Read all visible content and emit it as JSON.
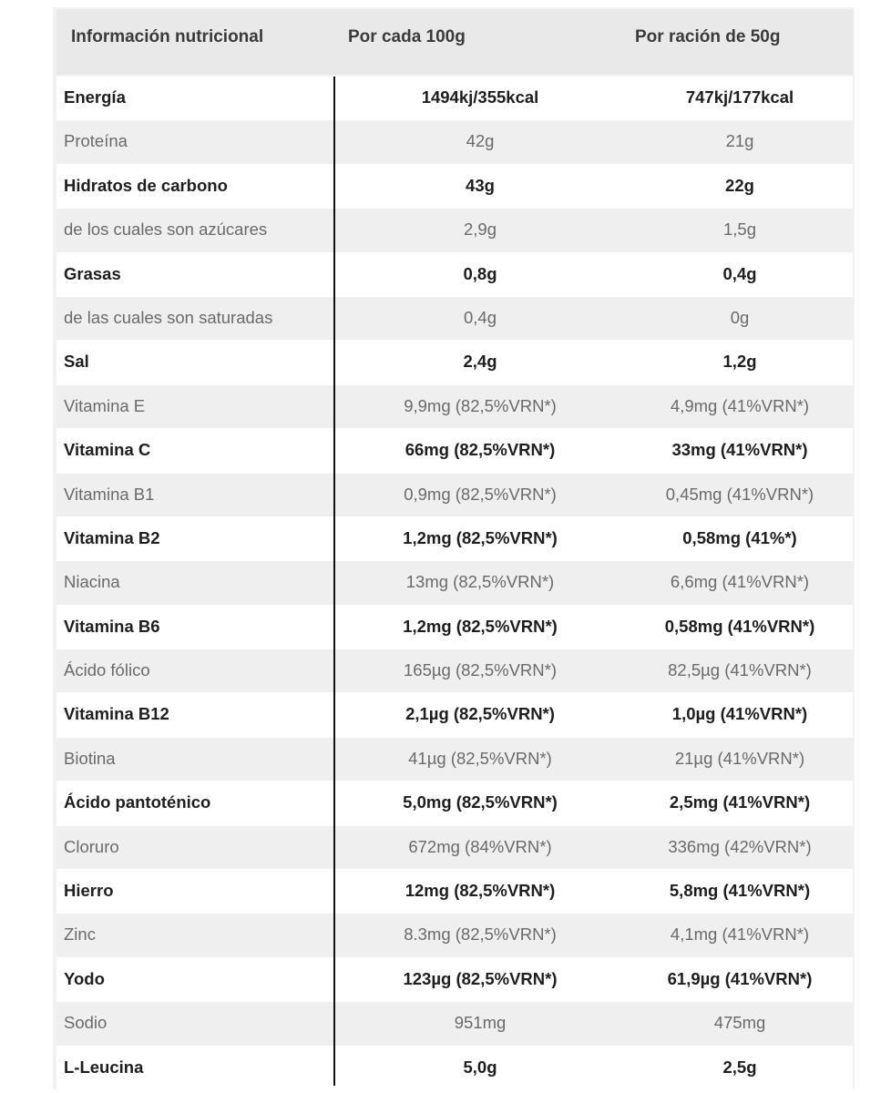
{
  "header": {
    "col1": "Información nutricional",
    "col2": "Por cada 100g",
    "col3": "Por ración de 50g"
  },
  "rows": [
    {
      "name": "Energía",
      "per100": "1494kj/355kcal",
      "perServing": "747kj/177kcal",
      "style": "bold"
    },
    {
      "name": "Proteína",
      "per100": "42g",
      "perServing": "21g",
      "style": "light"
    },
    {
      "name": "Hidratos de carbono",
      "per100": "43g",
      "perServing": "22g",
      "style": "bold"
    },
    {
      "name": "de los cuales son azúcares",
      "per100": "2,9g",
      "perServing": "1,5g",
      "style": "light"
    },
    {
      "name": "Grasas",
      "per100": "0,8g",
      "perServing": "0,4g",
      "style": "bold"
    },
    {
      "name": "de las cuales son saturadas",
      "per100": "0,4g",
      "perServing": "0g",
      "style": "light"
    },
    {
      "name": "Sal",
      "per100": "2,4g",
      "perServing": "1,2g",
      "style": "bold"
    },
    {
      "name": "Vitamina E",
      "per100": "9,9mg (82,5%VRN*)",
      "perServing": "4,9mg (41%VRN*)",
      "style": "light"
    },
    {
      "name": "Vitamina C",
      "per100": "66mg (82,5%VRN*)",
      "perServing": "33mg (41%VRN*)",
      "style": "bold"
    },
    {
      "name": "Vitamina B1",
      "per100": "0,9mg (82,5%VRN*)",
      "perServing": "0,45mg (41%VRN*)",
      "style": "light"
    },
    {
      "name": "Vitamina B2",
      "per100": "1,2mg (82,5%VRN*)",
      "perServing": "0,58mg (41%*)",
      "style": "bold"
    },
    {
      "name": "Niacina",
      "per100": "13mg (82,5%VRN*)",
      "perServing": "6,6mg (41%VRN*)",
      "style": "light"
    },
    {
      "name": "Vitamina B6",
      "per100": "1,2mg (82,5%VRN*)",
      "perServing": "0,58mg (41%VRN*)",
      "style": "bold"
    },
    {
      "name": "Ácido fólico",
      "per100": "165µg (82,5%VRN*)",
      "perServing": "82,5µg (41%VRN*)",
      "style": "light"
    },
    {
      "name": "Vitamina B12",
      "per100": "2,1µg (82,5%VRN*)",
      "perServing": "1,0µg (41%VRN*)",
      "style": "bold"
    },
    {
      "name": "Biotina",
      "per100": "41µg (82,5%VRN*)",
      "perServing": "21µg (41%VRN*)",
      "style": "light"
    },
    {
      "name": "Ácido pantoténico",
      "per100": "5,0mg (82,5%VRN*)",
      "perServing": "2,5mg (41%VRN*)",
      "style": "bold"
    },
    {
      "name": "Cloruro",
      "per100": "672mg (84%VRN*)",
      "perServing": "336mg (42%VRN*)",
      "style": "light"
    },
    {
      "name": "Hierro",
      "per100": "12mg (82,5%VRN*)",
      "perServing": "5,8mg (41%VRN*)",
      "style": "bold"
    },
    {
      "name": "Zinc",
      "per100": "8.3mg (82,5%VRN*)",
      "perServing": "4,1mg (41%VRN*)",
      "style": "light"
    },
    {
      "name": "Yodo",
      "per100": "123µg (82,5%VRN*)",
      "perServing": "61,9µg (41%VRN*)",
      "style": "bold"
    },
    {
      "name": "Sodio",
      "per100": "951mg",
      "perServing": "475mg",
      "style": "light"
    },
    {
      "name": "L-Leucina",
      "per100": "5,0g",
      "perServing": "2,5g",
      "style": "bold"
    }
  ]
}
